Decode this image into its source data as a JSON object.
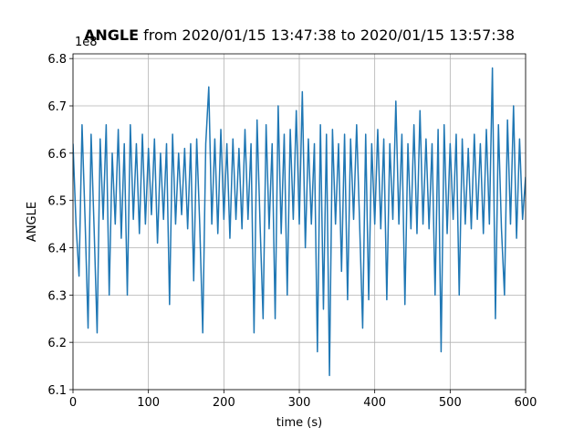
{
  "chart_data": {
    "type": "line",
    "title_variable": "ANGLE",
    "title_range": "from 2020/01/15 13:47:38 to 2020/01/15 13:57:38",
    "offset_label": "1e8",
    "xlabel": "time (s)",
    "ylabel": "ANGLE",
    "color": "#1f77b4",
    "xlim": [
      0,
      600
    ],
    "xticks": [
      0,
      100,
      200,
      300,
      400,
      500,
      600
    ],
    "ylim": [
      6.1,
      6.81
    ],
    "yticks": [
      6.1,
      6.2,
      6.3,
      6.4,
      6.5,
      6.6,
      6.7,
      6.8
    ],
    "grid": true,
    "x": [
      0,
      4,
      8,
      12,
      16,
      20,
      24,
      28,
      32,
      36,
      40,
      44,
      48,
      52,
      56,
      60,
      64,
      68,
      72,
      76,
      80,
      84,
      88,
      92,
      96,
      100,
      104,
      108,
      112,
      116,
      120,
      124,
      128,
      132,
      136,
      140,
      144,
      148,
      152,
      156,
      160,
      164,
      168,
      172,
      176,
      180,
      184,
      188,
      192,
      196,
      200,
      204,
      208,
      212,
      216,
      220,
      224,
      228,
      232,
      236,
      240,
      244,
      248,
      252,
      256,
      260,
      264,
      268,
      272,
      276,
      280,
      284,
      288,
      292,
      296,
      300,
      304,
      308,
      312,
      316,
      320,
      324,
      328,
      332,
      336,
      340,
      344,
      348,
      352,
      356,
      360,
      364,
      368,
      372,
      376,
      380,
      384,
      388,
      392,
      396,
      400,
      404,
      408,
      412,
      416,
      420,
      424,
      428,
      432,
      436,
      440,
      444,
      448,
      452,
      456,
      460,
      464,
      468,
      472,
      476,
      480,
      484,
      488,
      492,
      496,
      500,
      504,
      508,
      512,
      516,
      520,
      524,
      528,
      532,
      536,
      540,
      544,
      548,
      552,
      556,
      560,
      564,
      568,
      572,
      576,
      580,
      584,
      588,
      592,
      596,
      600
    ],
    "values": [
      6.62,
      6.45,
      6.34,
      6.66,
      6.46,
      6.23,
      6.64,
      6.44,
      6.22,
      6.63,
      6.46,
      6.66,
      6.3,
      6.6,
      6.45,
      6.65,
      6.42,
      6.62,
      6.3,
      6.66,
      6.46,
      6.62,
      6.43,
      6.64,
      6.45,
      6.61,
      6.47,
      6.63,
      6.41,
      6.6,
      6.46,
      6.62,
      6.28,
      6.64,
      6.45,
      6.6,
      6.47,
      6.61,
      6.44,
      6.62,
      6.33,
      6.63,
      6.45,
      6.22,
      6.62,
      6.74,
      6.45,
      6.63,
      6.43,
      6.65,
      6.46,
      6.62,
      6.42,
      6.63,
      6.46,
      6.61,
      6.44,
      6.65,
      6.46,
      6.62,
      6.22,
      6.67,
      6.45,
      6.25,
      6.66,
      6.44,
      6.62,
      6.25,
      6.7,
      6.43,
      6.64,
      6.3,
      6.65,
      6.46,
      6.69,
      6.45,
      6.73,
      6.4,
      6.63,
      6.45,
      6.62,
      6.18,
      6.66,
      6.27,
      6.64,
      6.13,
      6.65,
      6.45,
      6.62,
      6.35,
      6.64,
      6.29,
      6.63,
      6.46,
      6.66,
      6.45,
      6.23,
      6.64,
      6.29,
      6.62,
      6.45,
      6.65,
      6.44,
      6.63,
      6.29,
      6.62,
      6.46,
      6.71,
      6.45,
      6.64,
      6.28,
      6.62,
      6.44,
      6.66,
      6.43,
      6.69,
      6.45,
      6.63,
      6.44,
      6.62,
      6.3,
      6.65,
      6.18,
      6.66,
      6.43,
      6.62,
      6.46,
      6.64,
      6.3,
      6.63,
      6.45,
      6.61,
      6.44,
      6.64,
      6.46,
      6.62,
      6.43,
      6.65,
      6.45,
      6.78,
      6.25,
      6.66,
      6.44,
      6.3,
      6.67,
      6.45,
      6.7,
      6.42,
      6.63,
      6.46,
      6.55
    ]
  }
}
